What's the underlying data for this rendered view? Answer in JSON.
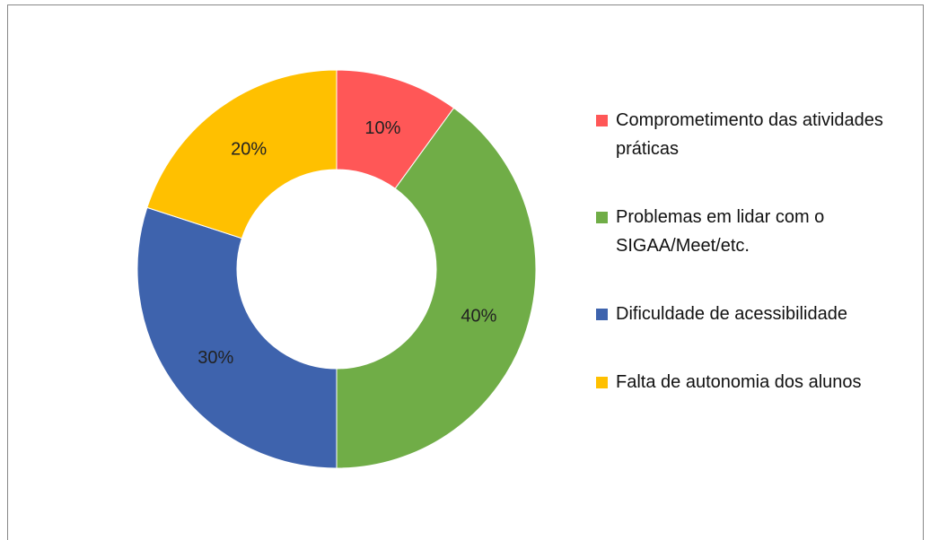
{
  "chart_data": {
    "type": "donut",
    "categories": [
      "Comprometimento das atividades práticas",
      "Problemas em lidar com o SIGAA/Meet/etc.",
      "Dificuldade de acessibilidade",
      "Falta de autonomia dos alunos"
    ],
    "values": [
      10,
      40,
      30,
      20
    ],
    "value_labels": [
      "10%",
      "40%",
      "30%",
      "20%"
    ],
    "colors": [
      "#FF5757",
      "#70AD47",
      "#3E63AD",
      "#FFC000"
    ],
    "legend": "right"
  }
}
